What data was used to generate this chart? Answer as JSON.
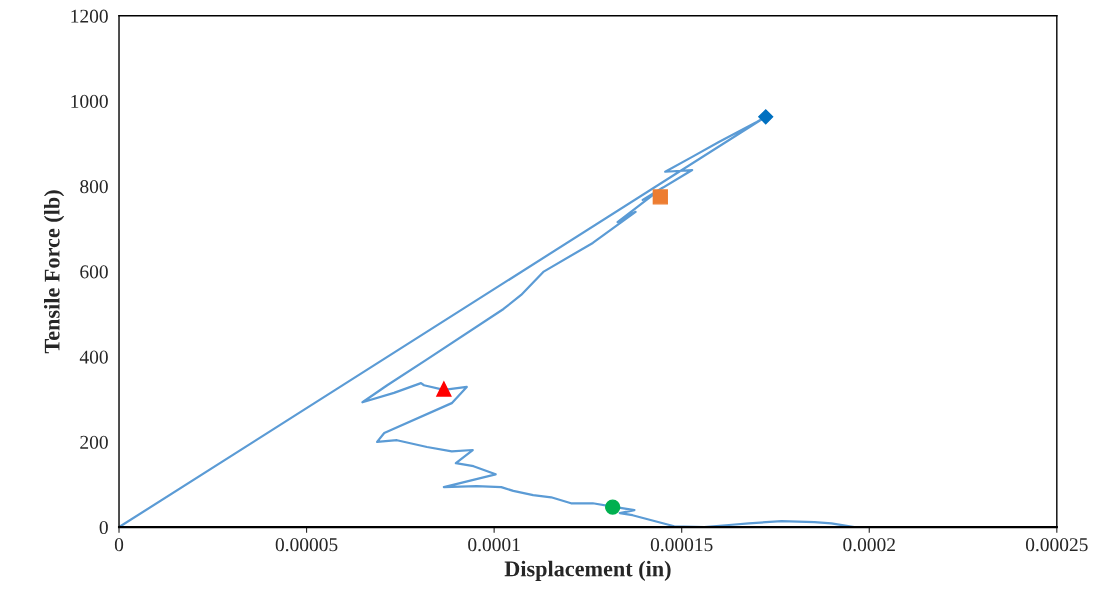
{
  "chart_data": {
    "type": "line",
    "xlabel": "Displacement (in)",
    "ylabel": "Tensile Force (lb)",
    "xlim": [
      0,
      0.00025
    ],
    "ylim": [
      0,
      1200
    ],
    "xticks": [
      0,
      {
        "value": 5e-05,
        "label": "0.00005"
      },
      {
        "value": 0.0001,
        "label": "0.0001"
      },
      {
        "value": 0.00015,
        "label": "0.00015"
      },
      {
        "value": 0.0002,
        "label": "0.0002"
      },
      {
        "value": 0.00025,
        "label": "0.00025"
      }
    ],
    "yticks": [
      0,
      200,
      400,
      600,
      800,
      1000,
      1200
    ],
    "grid": false,
    "legend": false,
    "series": [
      {
        "color": "#5b9bd5",
        "marker": "none",
        "x": [
          0,
          0.0001724,
          0.00017,
          0.0001599,
          0.0001528,
          0.0001456,
          0.0001528,
          0.0001396,
          0.0001448,
          0.0001329,
          0.0001377,
          0.0001263,
          0.0001131,
          0.0001072,
          0.0001025,
          8.18e-05,
          7.15e-05,
          6.49e-05,
          7.33e-05,
          8.05e-05,
          8.13e-05,
          8.66e-05,
          9.27e-05,
          8.87e-05,
          7.07e-05,
          6.88e-05,
          7.41e-05,
          8.21e-05,
          8.87e-05,
          9.43e-05,
          8.98e-05,
          9.45e-05,
          0.0001004,
          8.66e-05,
          9.53e-05,
          0.0001019,
          0.0001051,
          0.0001104,
          0.0001152,
          0.0001205,
          0.0001263,
          0.0001324,
          0.0001374,
          0.0001335,
          0.0001369,
          0.000148,
          0.000156,
          0.0001626,
          0.0001679,
          0.0001766,
          0.0001854,
          0.0001899,
          0.000196
        ],
        "values": [
          0,
          963,
          951,
          904,
          869,
          834,
          838,
          768,
          796,
          716,
          740,
          667,
          599,
          545,
          512,
          392,
          333,
          293,
          315,
          338,
          333,
          322,
          329,
          291,
          221,
          200,
          204,
          188,
          178,
          181,
          150,
          143,
          124,
          94,
          96,
          94,
          85,
          75,
          70,
          56,
          56,
          47,
          40,
          33,
          28,
          2,
          0,
          5,
          9,
          14,
          12,
          9,
          0
        ]
      },
      {
        "type": "scatter",
        "color": "#0070c0",
        "marker": "diamond",
        "x": [
          0.0001724
        ],
        "values": [
          963
        ]
      },
      {
        "type": "scatter",
        "color": "#ed7d31",
        "marker": "square",
        "x": [
          0.0001443
        ],
        "values": [
          775
        ]
      },
      {
        "type": "scatter",
        "color": "#ff0000",
        "marker": "triangle",
        "x": [
          8.66e-05
        ],
        "values": [
          324
        ]
      },
      {
        "type": "scatter",
        "color": "#00b050",
        "marker": "circle",
        "x": [
          0.0001316
        ],
        "values": [
          47
        ]
      }
    ]
  }
}
